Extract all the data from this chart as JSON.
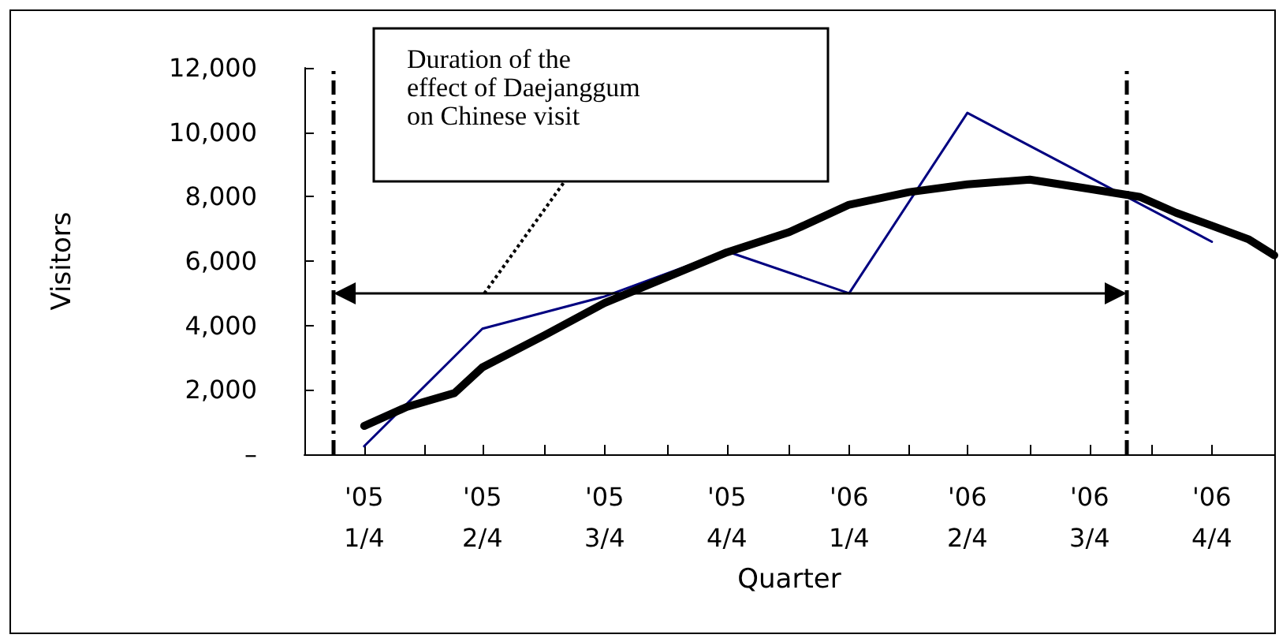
{
  "chart_data": {
    "type": "line",
    "xlabel": "Quarter",
    "ylabel": "Visitors",
    "xlim": [
      "2005-01-01",
      "2007-01-01"
    ],
    "xticks": [
      {
        "value": "2005-01-01",
        "label": null
      },
      {
        "value": "2005-02-15",
        "label": "'05\n1/4"
      },
      {
        "value": "2005-04-01",
        "label": null
      },
      {
        "value": "2005-05-15",
        "label": "'05\n2/4"
      },
      {
        "value": "2005-07-01",
        "label": null
      },
      {
        "value": "2005-08-15",
        "label": "'05\n3/4"
      },
      {
        "value": "2005-10-01",
        "label": null
      },
      {
        "value": "2005-11-15",
        "label": "'05\n4/4"
      },
      {
        "value": "2006-01-01",
        "label": null
      },
      {
        "value": "2006-02-15",
        "label": "'06\n1/4"
      },
      {
        "value": "2006-04-01",
        "label": null
      },
      {
        "value": "2006-05-15",
        "label": "'06\n2/4"
      },
      {
        "value": "2006-07-01",
        "label": null
      },
      {
        "value": "2006-08-15",
        "label": "'06\n3/4"
      },
      {
        "value": "2006-10-01",
        "label": null
      },
      {
        "value": "2006-11-15",
        "label": "'06\n4/4"
      },
      {
        "value": "2007-01-01",
        "label": null
      }
    ],
    "ylim": [
      0,
      12000
    ],
    "yticks": [
      {
        "value": 0,
        "label": "–"
      },
      {
        "value": 2000,
        "label": "2,000"
      },
      {
        "value": 4000,
        "label": "4,000"
      },
      {
        "value": 6000,
        "label": "6,000"
      },
      {
        "value": 8000,
        "label": "8,000"
      },
      {
        "value": 10000,
        "label": "10,000"
      },
      {
        "value": 12000,
        "label": "12,000"
      }
    ],
    "grid": false,
    "marker": "none",
    "line_style": "solid",
    "series": [
      {
        "color": "#000080",
        "x": [
          "2005-02-15",
          "2005-05-15",
          "2005-08-15",
          "2005-11-15",
          "2006-02-15",
          "2006-05-15",
          "2006-08-15",
          "2006-11-15"
        ],
        "values": [
          250,
          3900,
          4900,
          6300,
          5000,
          10600,
          8600,
          6600
        ]
      },
      {
        "color": "#000000",
        "x": [
          "2005-02-15",
          "2005-03-19",
          "2005-04-24",
          "2005-05-15",
          "2005-07-01",
          "2005-08-15",
          "2005-10-01",
          "2005-11-15",
          "2006-01-01",
          "2006-02-15",
          "2006-04-01",
          "2006-05-15",
          "2006-07-01",
          "2006-08-15",
          "2006-09-22",
          "2006-10-19",
          "2006-11-15",
          "2006-12-13",
          "2007-01-01"
        ],
        "values": [
          880,
          1470,
          1900,
          2700,
          3700,
          4700,
          5500,
          6270,
          6900,
          7750,
          8140,
          8380,
          8530,
          8240,
          7990,
          7500,
          7100,
          6670,
          6180
        ]
      }
    ],
    "ref_lines": [
      {
        "axis": "x",
        "value": "2005-01-23",
        "color": "#000000",
        "line_style": "dashdot"
      },
      {
        "axis": "x",
        "value": "2006-09-12",
        "color": "#000000",
        "line_style": "dashdot"
      }
    ],
    "annotations": [
      "Duration of the\neffect of Daejanggum\non Chinese visit"
    ]
  }
}
